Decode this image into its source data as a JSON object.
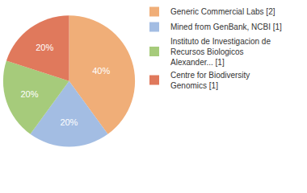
{
  "chart_data": {
    "type": "pie",
    "categories": [
      "Generic Commercial Labs [2]",
      "Mined from GenBank, NCBI [1]",
      "Instituto de Investigacion de Recursos Biologicos Alexander... [1]",
      "Centre for Biodiversity Genomics [1]"
    ],
    "values": [
      40,
      20,
      20,
      20
    ],
    "value_labels": [
      "40%",
      "20%",
      "20%",
      "20%"
    ],
    "colors": [
      "#f0ae78",
      "#a3bde3",
      "#a6cb7b",
      "#e0795c"
    ],
    "data_labels": true,
    "legend": "top right"
  }
}
